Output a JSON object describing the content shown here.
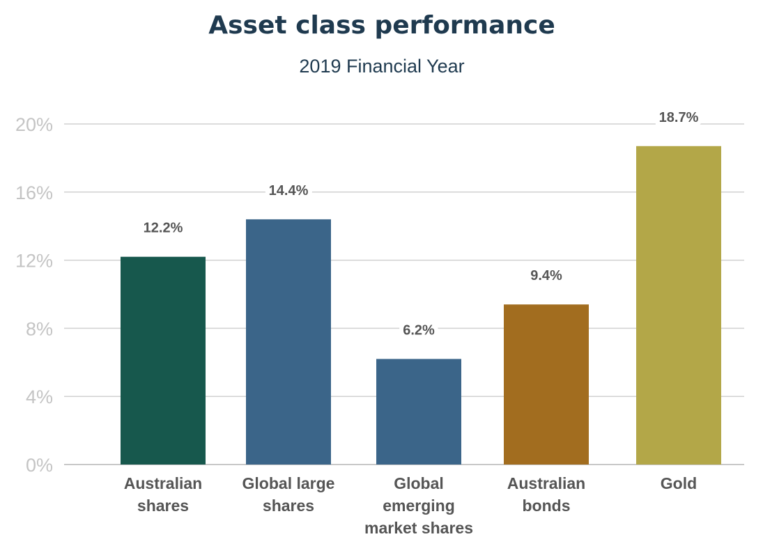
{
  "chart_data": {
    "type": "bar",
    "title": "Asset class performance",
    "subtitle": "2019 Financial Year",
    "categories": [
      [
        "Australian",
        "shares"
      ],
      [
        "Global large",
        "shares"
      ],
      [
        "Global",
        "emerging",
        "market shares"
      ],
      [
        "Australian",
        "bonds"
      ],
      [
        "Gold"
      ]
    ],
    "values": [
      12.2,
      14.4,
      6.2,
      9.4,
      18.7
    ],
    "value_labels": [
      "12.2%",
      "14.4%",
      "6.2%",
      "9.4%",
      "18.7%"
    ],
    "colors": [
      "#17584d",
      "#3b6589",
      "#3b6589",
      "#a26d1f",
      "#b3a748"
    ],
    "ylim": [
      0,
      20
    ],
    "yticks": [
      0,
      4,
      8,
      12,
      16,
      20
    ],
    "ytick_labels": [
      "0%",
      "4%",
      "8%",
      "12%",
      "16%",
      "20%"
    ],
    "grid": true,
    "legend": "none"
  }
}
